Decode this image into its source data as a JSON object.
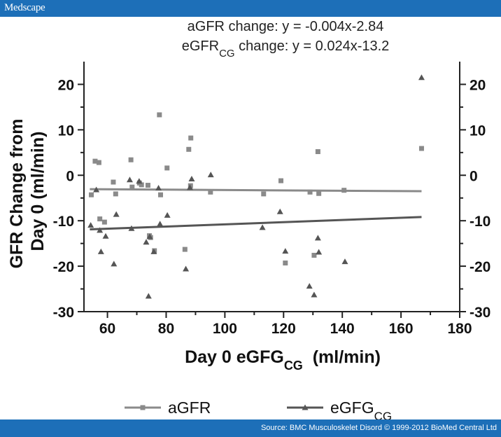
{
  "header": {
    "brand": "Medscape"
  },
  "footer": {
    "source": "Source: BMC Musculoskelet Disord © 1999-2012 BioMed Central Ltd"
  },
  "colors": {
    "bar": "#1d6fb8",
    "agfr": "#8a8a8a",
    "egfg": "#555555",
    "axis": "#222222"
  },
  "chart_data": {
    "type": "scatter",
    "title_lines": [
      {
        "text": "aGFR change: y = -0.004x-2.84",
        "sub": "",
        "tail": ""
      },
      {
        "text": "eGFR",
        "sub": "CG",
        "tail": " change: y = 0.024x-13.2"
      }
    ],
    "xlabel": {
      "text": "Day 0 eGFG",
      "sub": "CG",
      "tail": "  (ml/min)"
    },
    "ylabel_lines": [
      "GFR Change from",
      "Day 0 (ml/min)"
    ],
    "xlim": [
      52,
      180
    ],
    "ylim": [
      -30,
      25
    ],
    "xticks": [
      60,
      80,
      100,
      120,
      140,
      160,
      180
    ],
    "yticks": [
      20,
      10,
      0,
      -10,
      -20,
      -30
    ],
    "right_axis": true,
    "grid": false,
    "legend_position": "bottom",
    "series": [
      {
        "name": "aGFR",
        "name_sub": "",
        "marker": "square",
        "points": [
          [
            54.5,
            -4.3
          ],
          [
            55.8,
            3.1
          ],
          [
            57.1,
            2.8
          ],
          [
            57.4,
            -9.6
          ],
          [
            59.0,
            -10.3
          ],
          [
            62.0,
            -1.5
          ],
          [
            62.8,
            -4.1
          ],
          [
            68.0,
            3.4
          ],
          [
            68.4,
            -2.6
          ],
          [
            70.9,
            -1.7
          ],
          [
            71.6,
            -2.1
          ],
          [
            73.8,
            -2.2
          ],
          [
            74.3,
            -13.3
          ],
          [
            74.7,
            -13.7
          ],
          [
            76.0,
            -16.6
          ],
          [
            77.7,
            13.3
          ],
          [
            78.1,
            -4.3
          ],
          [
            80.3,
            1.6
          ],
          [
            86.4,
            -16.3
          ],
          [
            87.7,
            5.7
          ],
          [
            88.4,
            8.2
          ],
          [
            88.3,
            -2.3
          ],
          [
            95.1,
            -3.7
          ],
          [
            113.2,
            -4.1
          ],
          [
            119.1,
            -1.2
          ],
          [
            120.6,
            -19.3
          ],
          [
            129.0,
            -3.7
          ],
          [
            130.4,
            -17.6
          ],
          [
            131.7,
            5.2
          ],
          [
            132.0,
            -4.0
          ],
          [
            140.6,
            -3.3
          ],
          [
            167.0,
            5.9
          ]
        ]
      },
      {
        "name": "eGFG",
        "name_sub": "CG",
        "marker": "triangle",
        "points": [
          [
            54.3,
            -11.0
          ],
          [
            56.2,
            -3.2
          ],
          [
            57.4,
            -12.1
          ],
          [
            57.8,
            -16.8
          ],
          [
            59.4,
            -13.4
          ],
          [
            62.2,
            -19.5
          ],
          [
            63.0,
            -8.6
          ],
          [
            67.6,
            -1.0
          ],
          [
            68.2,
            -11.7
          ],
          [
            70.8,
            -1.3
          ],
          [
            73.2,
            -14.7
          ],
          [
            74.0,
            -26.6
          ],
          [
            74.4,
            -13.5
          ],
          [
            75.8,
            -16.8
          ],
          [
            77.4,
            -2.8
          ],
          [
            77.9,
            -10.7
          ],
          [
            80.4,
            -8.8
          ],
          [
            86.7,
            -20.6
          ],
          [
            88.1,
            -2.7
          ],
          [
            88.7,
            -0.8
          ],
          [
            95.2,
            0.1
          ],
          [
            112.8,
            -11.5
          ],
          [
            118.8,
            -8.0
          ],
          [
            120.6,
            -16.7
          ],
          [
            128.8,
            -24.4
          ],
          [
            130.4,
            -26.3
          ],
          [
            131.7,
            -13.8
          ],
          [
            132.0,
            -16.9
          ],
          [
            140.9,
            -19.0
          ],
          [
            167.0,
            21.5
          ]
        ]
      }
    ],
    "fit_lines": [
      {
        "series": "aGFR",
        "x": [
          54,
          167
        ],
        "y": [
          -3.06,
          -3.51
        ]
      },
      {
        "series": "eGFG",
        "x": [
          54,
          167
        ],
        "y": [
          -11.9,
          -9.19
        ]
      }
    ]
  }
}
